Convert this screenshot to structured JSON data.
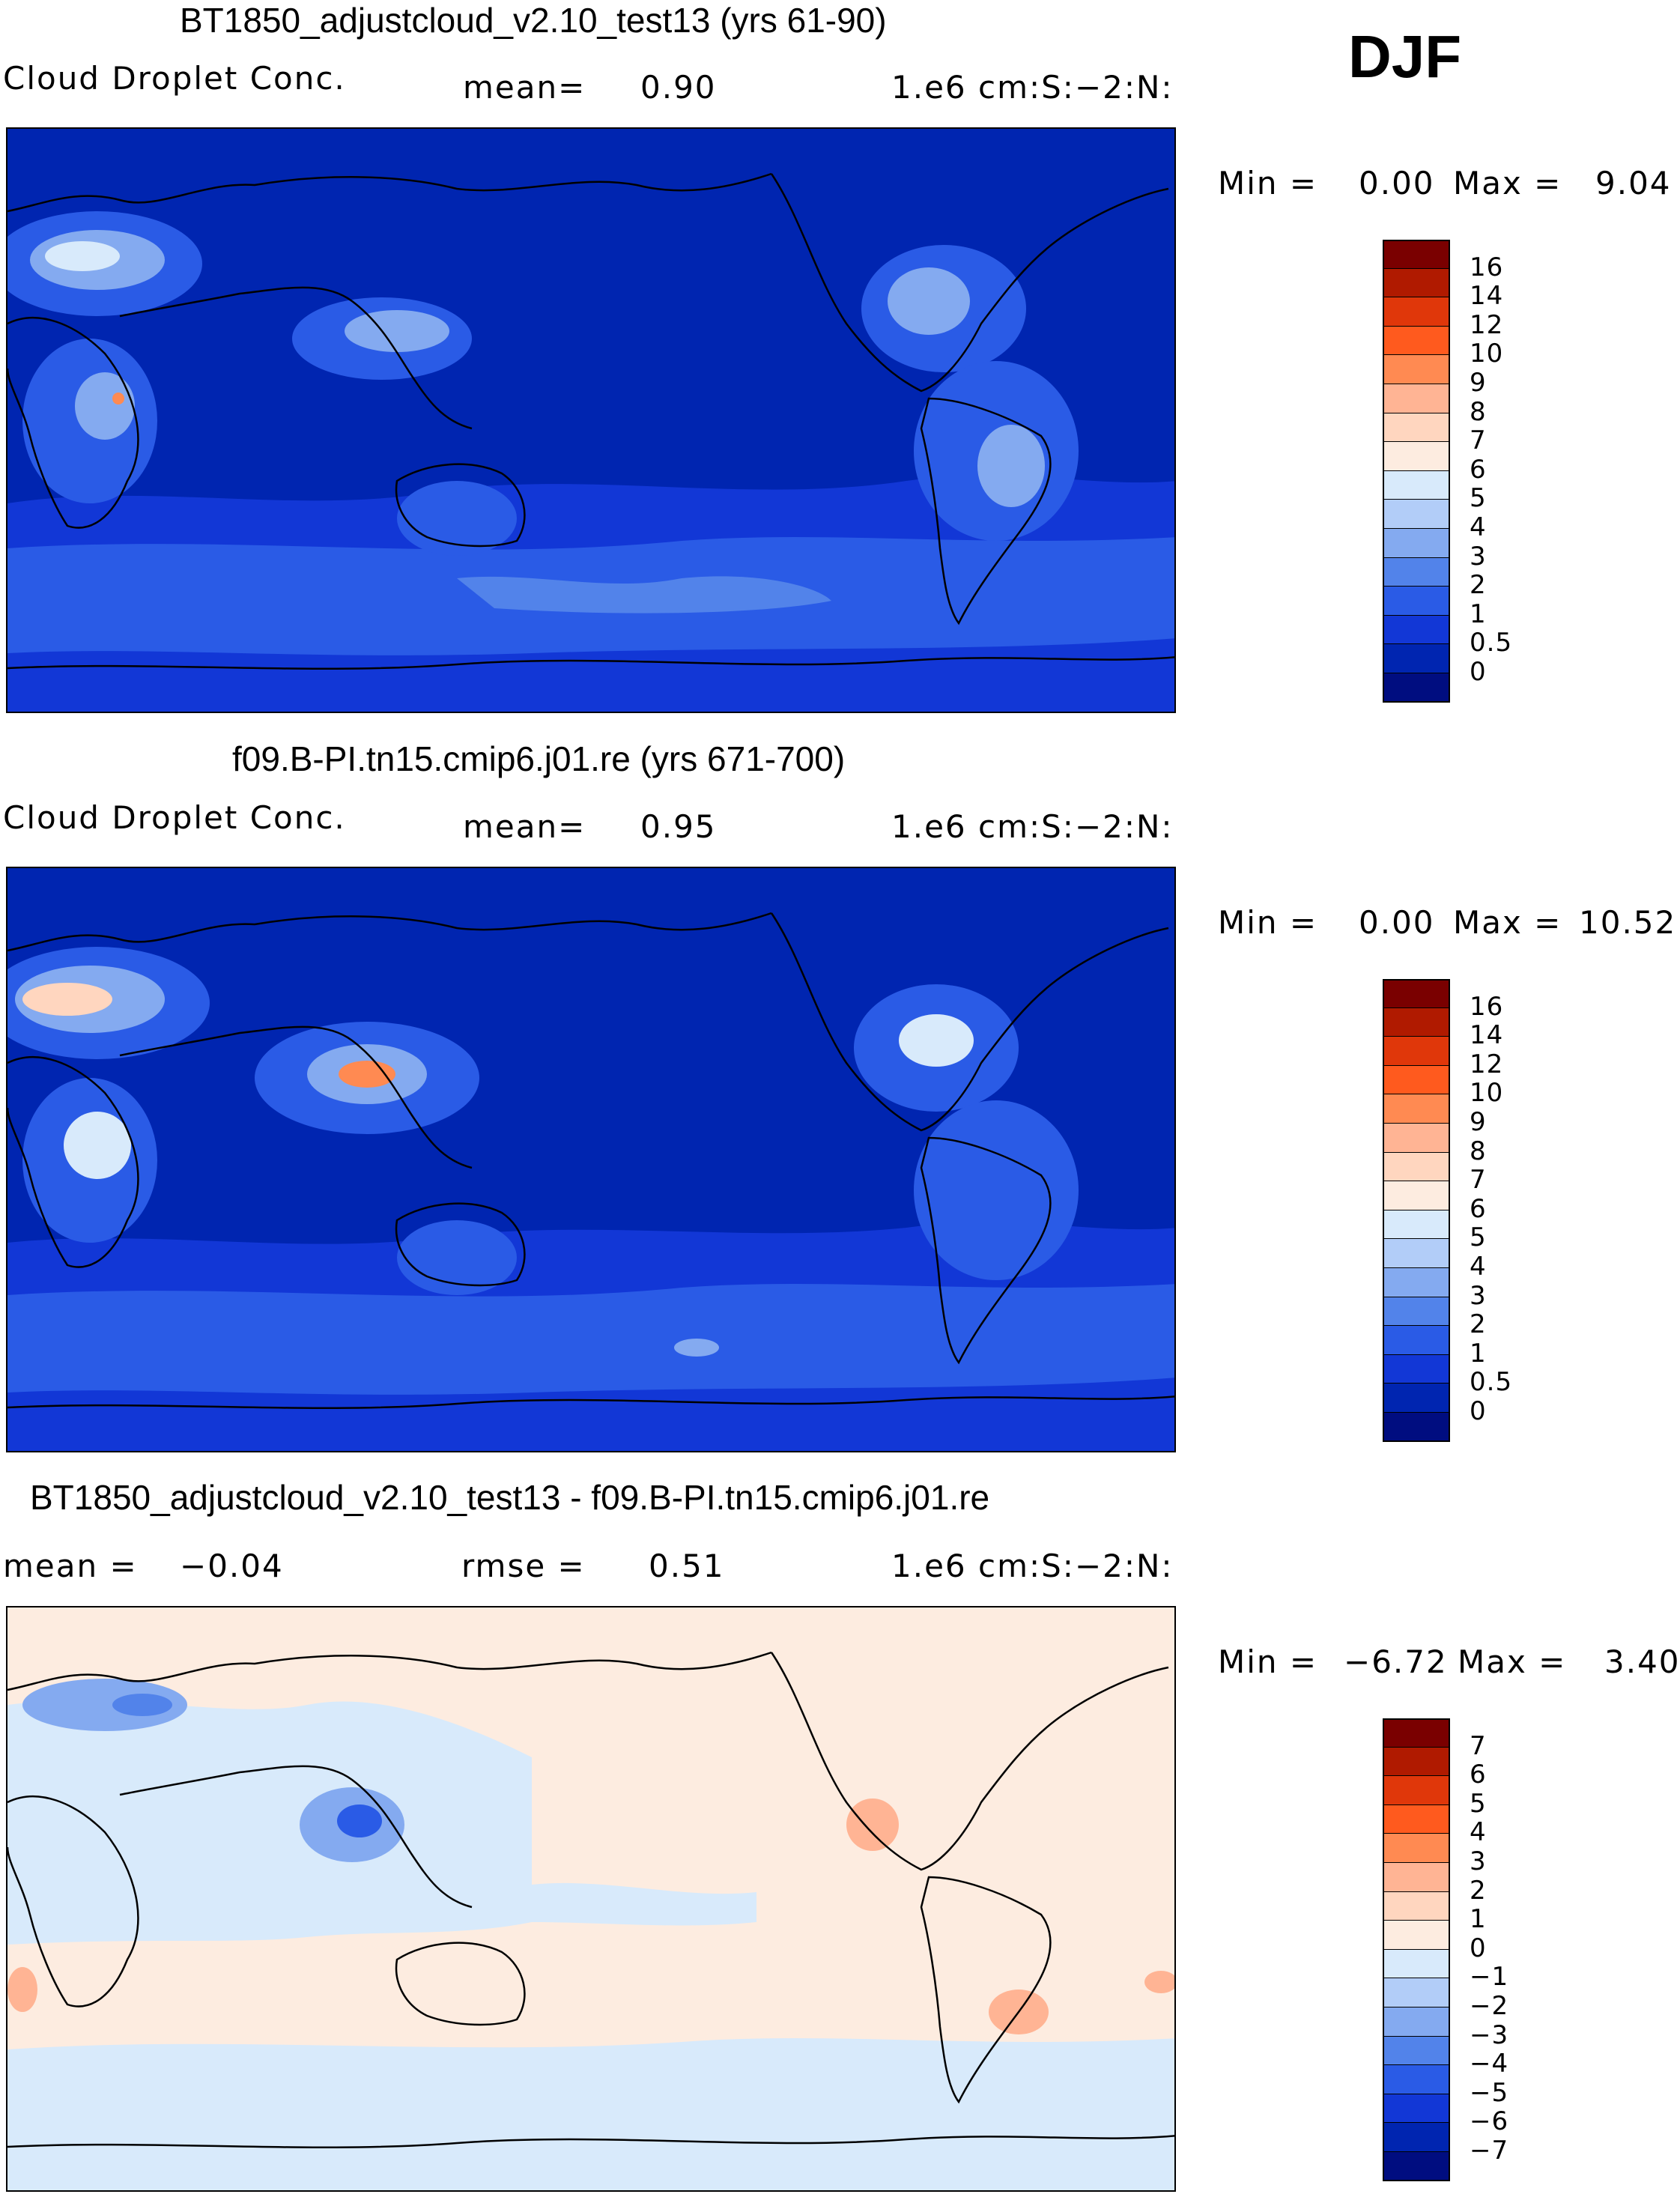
{
  "season": "DJF",
  "units": "1.e6 cm:S:−2:N:",
  "panels": [
    {
      "title": "BT1850_adjustcloud_v2.10_test13 (yrs 61-90)",
      "field": "Cloud Droplet Conc.",
      "stat_label": "mean=",
      "stat_value": "0.90",
      "min_label": "Min =",
      "min_value": "0.00",
      "max_label": "Max =",
      "max_value": "9.04",
      "levels": [
        "16",
        "14",
        "12",
        "10",
        "9",
        "8",
        "7",
        "6",
        "5",
        "4",
        "3",
        "2",
        "1",
        "0.5",
        "0"
      ],
      "colors": [
        "#7a0000",
        "#b01a00",
        "#e0370a",
        "#ff5a1e",
        "#ff8a52",
        "#ffb494",
        "#ffd6bf",
        "#fdece0",
        "#d8eafb",
        "#b2cdf8",
        "#84aaf0",
        "#5283ea",
        "#2a5be6",
        "#1237d6",
        "#0025b0",
        "#000d80"
      ],
      "map_style": "positive"
    },
    {
      "title": "f09.B-PI.tn15.cmip6.j01.re (yrs 671-700)",
      "field": "Cloud Droplet Conc.",
      "stat_label": "mean=",
      "stat_value": "0.95",
      "min_label": "Min =",
      "min_value": "0.00",
      "max_label": "Max =",
      "max_value": "10.52",
      "levels": [
        "16",
        "14",
        "12",
        "10",
        "9",
        "8",
        "7",
        "6",
        "5",
        "4",
        "3",
        "2",
        "1",
        "0.5",
        "0"
      ],
      "colors": [
        "#7a0000",
        "#b01a00",
        "#e0370a",
        "#ff5a1e",
        "#ff8a52",
        "#ffb494",
        "#ffd6bf",
        "#fdece0",
        "#d8eafb",
        "#b2cdf8",
        "#84aaf0",
        "#5283ea",
        "#2a5be6",
        "#1237d6",
        "#0025b0",
        "#000d80"
      ],
      "map_style": "positive"
    },
    {
      "title": "BT1850_adjustcloud_v2.10_test13 - f09.B-PI.tn15.cmip6.j01.re",
      "field": "",
      "stat_label": "mean =",
      "stat_value": "−0.04",
      "stat2_label": "rmse =",
      "stat2_value": "0.51",
      "min_label": "Min =",
      "min_value": "−6.72",
      "max_label": "Max =",
      "max_value": "3.40",
      "levels": [
        "7",
        "6",
        "5",
        "4",
        "3",
        "2",
        "1",
        "0",
        "−1",
        "−2",
        "−3",
        "−4",
        "−5",
        "−6",
        "−7"
      ],
      "colors": [
        "#7a0000",
        "#b01a00",
        "#e0370a",
        "#ff5a1e",
        "#ff8a52",
        "#ffb494",
        "#ffd6bf",
        "#fdece0",
        "#d8eafb",
        "#b2cdf8",
        "#84aaf0",
        "#5283ea",
        "#2a5be6",
        "#1237d6",
        "#0025b0",
        "#000d80"
      ],
      "map_style": "difference"
    }
  ]
}
